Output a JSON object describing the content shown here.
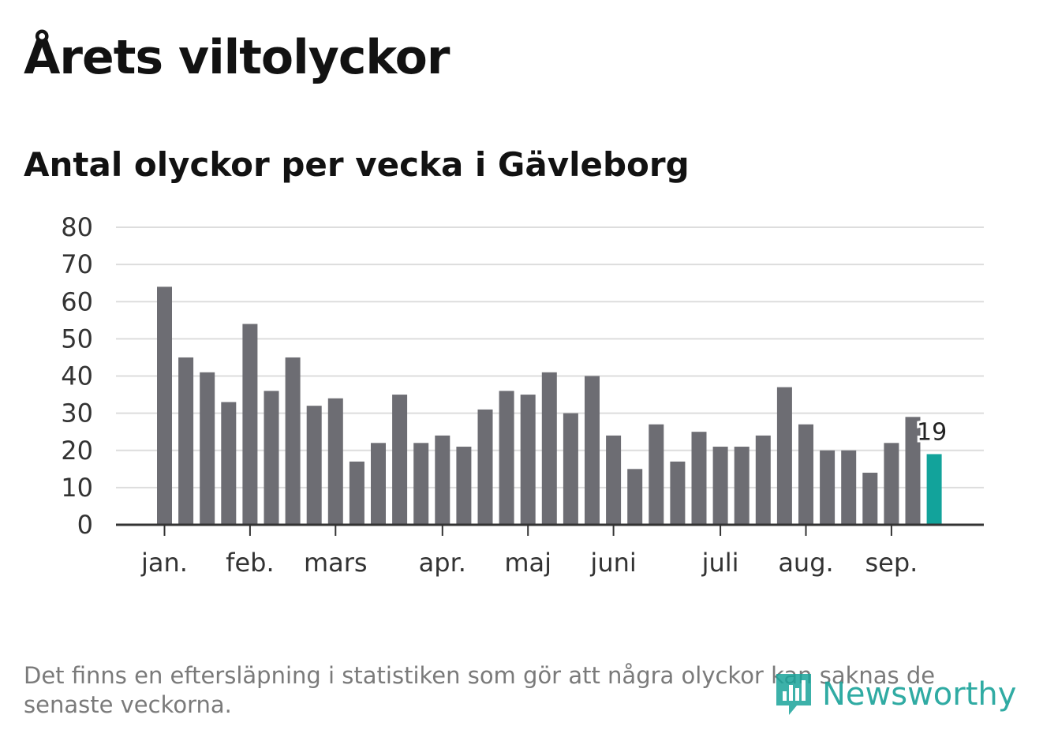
{
  "header": {
    "title": "Årets viltolyckor",
    "subtitle": "Antal olyckor per vecka i Gävleborg"
  },
  "footnote": "Det finns en eftersläpning i statistiken som gör att några olyckor kan saknas de senaste veckorna.",
  "brand": {
    "name": "Newsworthy",
    "icon": "newsworthy-logo-icon",
    "color": "#1aa39a"
  },
  "colors": {
    "bar": "#6d6d73",
    "highlight": "#12a39b",
    "grid": "#dddddd",
    "axis": "#333333"
  },
  "chart_data": {
    "type": "bar",
    "values": [
      64,
      45,
      41,
      33,
      54,
      36,
      45,
      32,
      34,
      17,
      22,
      35,
      22,
      24,
      21,
      31,
      36,
      35,
      41,
      30,
      40,
      24,
      15,
      27,
      17,
      25,
      21,
      21,
      24,
      37,
      27,
      20,
      20,
      14,
      22,
      29,
      19
    ],
    "highlight_index": 36,
    "highlight_label": "19",
    "ylim": [
      0,
      80
    ],
    "yticks": [
      "0",
      "10",
      "20",
      "30",
      "40",
      "50",
      "60",
      "70",
      "80"
    ],
    "xticks": [
      {
        "label": "jan.",
        "bar_index": 0
      },
      {
        "label": "feb.",
        "bar_index": 4
      },
      {
        "label": "mars",
        "bar_index": 8
      },
      {
        "label": "apr.",
        "bar_index": 13
      },
      {
        "label": "maj",
        "bar_index": 17
      },
      {
        "label": "juni",
        "bar_index": 21
      },
      {
        "label": "juli",
        "bar_index": 26
      },
      {
        "label": "aug.",
        "bar_index": 30
      },
      {
        "label": "sep.",
        "bar_index": 34
      }
    ],
    "grid": true,
    "legend": "none"
  }
}
